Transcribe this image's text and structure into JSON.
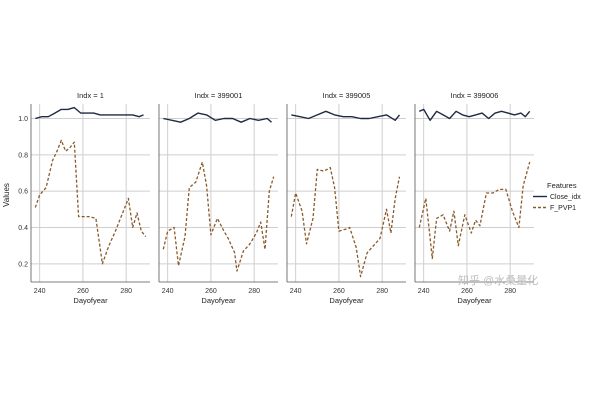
{
  "chart_data": {
    "type": "line",
    "ylabel": "Values",
    "ylim": [
      0.1,
      1.08
    ],
    "xlim": [
      236,
      291
    ],
    "xticks": [
      240,
      260,
      280
    ],
    "yticks": [
      0.2,
      0.4,
      0.6,
      0.8,
      1.0
    ],
    "grid": true,
    "legend": {
      "title": "Features",
      "placement": "right",
      "entries": [
        {
          "name": "Close_idx",
          "color": "#1f2a44",
          "style": "solid"
        },
        {
          "name": "F_PVP1",
          "color": "#8b5a2b",
          "style": "dashed"
        }
      ]
    },
    "panels": [
      {
        "title": "Indx = 1",
        "xlabel": "Dayofyear",
        "series": [
          {
            "name": "Close_idx",
            "x": [
              238,
              241,
              244,
              247,
              250,
              253,
              256,
              259,
              262,
              265,
              268,
              271,
              274,
              277,
              280,
              283,
              286,
              288
            ],
            "y": [
              1.0,
              1.01,
              1.01,
              1.03,
              1.05,
              1.05,
              1.06,
              1.03,
              1.03,
              1.03,
              1.02,
              1.02,
              1.02,
              1.02,
              1.02,
              1.02,
              1.01,
              1.02
            ]
          },
          {
            "name": "F_PVP1",
            "x": [
              238,
              240,
              243,
              246,
              248,
              250,
              252,
              254,
              256,
              258,
              260,
              263,
              266,
              269,
              272,
              275,
              278,
              281,
              283,
              285,
              287,
              289
            ],
            "y": [
              0.51,
              0.58,
              0.62,
              0.77,
              0.82,
              0.88,
              0.82,
              0.84,
              0.87,
              0.46,
              0.46,
              0.46,
              0.45,
              0.2,
              0.3,
              0.38,
              0.47,
              0.56,
              0.4,
              0.48,
              0.38,
              0.35
            ]
          }
        ]
      },
      {
        "title": "Indx = 399001",
        "xlabel": "Dayofyear",
        "series": [
          {
            "name": "Close_idx",
            "x": [
              238,
              242,
              246,
              250,
              254,
              258,
              262,
              266,
              270,
              274,
              278,
              282,
              286,
              288
            ],
            "y": [
              1.0,
              0.99,
              0.98,
              1.0,
              1.03,
              1.02,
              0.99,
              1.0,
              1.0,
              0.98,
              1.0,
              0.99,
              1.0,
              0.98
            ]
          },
          {
            "name": "F_PVP1",
            "x": [
              238,
              240,
              243,
              245,
              248,
              250,
              253,
              256,
              258,
              260,
              263,
              266,
              268,
              271,
              272,
              275,
              278,
              281,
              283,
              285,
              287,
              289
            ],
            "y": [
              0.28,
              0.38,
              0.4,
              0.19,
              0.35,
              0.62,
              0.65,
              0.76,
              0.63,
              0.36,
              0.45,
              0.38,
              0.34,
              0.26,
              0.16,
              0.27,
              0.31,
              0.37,
              0.43,
              0.28,
              0.6,
              0.68
            ]
          }
        ]
      },
      {
        "title": "Indx = 399005",
        "xlabel": "Dayofyear",
        "series": [
          {
            "name": "Close_idx",
            "x": [
              238,
              242,
              246,
              250,
              254,
              258,
              262,
              266,
              270,
              274,
              278,
              282,
              286,
              288
            ],
            "y": [
              1.02,
              1.01,
              1.0,
              1.02,
              1.04,
              1.02,
              1.01,
              1.01,
              1.0,
              1.0,
              1.01,
              1.02,
              0.99,
              1.02
            ]
          },
          {
            "name": "F_PVP1",
            "x": [
              238,
              240,
              243,
              245,
              248,
              250,
              253,
              256,
              258,
              260,
              263,
              265,
              268,
              270,
              273,
              276,
              279,
              282,
              284,
              286,
              288
            ],
            "y": [
              0.46,
              0.59,
              0.49,
              0.31,
              0.45,
              0.72,
              0.71,
              0.73,
              0.62,
              0.38,
              0.39,
              0.4,
              0.29,
              0.13,
              0.26,
              0.3,
              0.34,
              0.5,
              0.37,
              0.56,
              0.68
            ]
          }
        ]
      },
      {
        "title": "Indx = 399006",
        "xlabel": "Dayofyear",
        "series": [
          {
            "name": "Close_idx",
            "x": [
              238,
              240,
              243,
              246,
              249,
              252,
              255,
              258,
              261,
              264,
              267,
              270,
              273,
              276,
              279,
              282,
              285,
              287,
              289
            ],
            "y": [
              1.04,
              1.05,
              0.99,
              1.04,
              1.02,
              1.0,
              1.04,
              1.02,
              1.01,
              1.02,
              1.03,
              1.0,
              1.03,
              1.04,
              1.03,
              1.02,
              1.03,
              1.01,
              1.04
            ]
          },
          {
            "name": "F_PVP1",
            "x": [
              238,
              241,
              244,
              246,
              249,
              252,
              254,
              256,
              259,
              262,
              264,
              266,
              269,
              272,
              275,
              278,
              281,
              284,
              286,
              289
            ],
            "y": [
              0.4,
              0.56,
              0.23,
              0.45,
              0.47,
              0.38,
              0.49,
              0.3,
              0.47,
              0.37,
              0.44,
              0.41,
              0.59,
              0.59,
              0.61,
              0.61,
              0.49,
              0.4,
              0.63,
              0.76
            ]
          }
        ]
      }
    ]
  },
  "watermark": "知乎 @水桑量化"
}
